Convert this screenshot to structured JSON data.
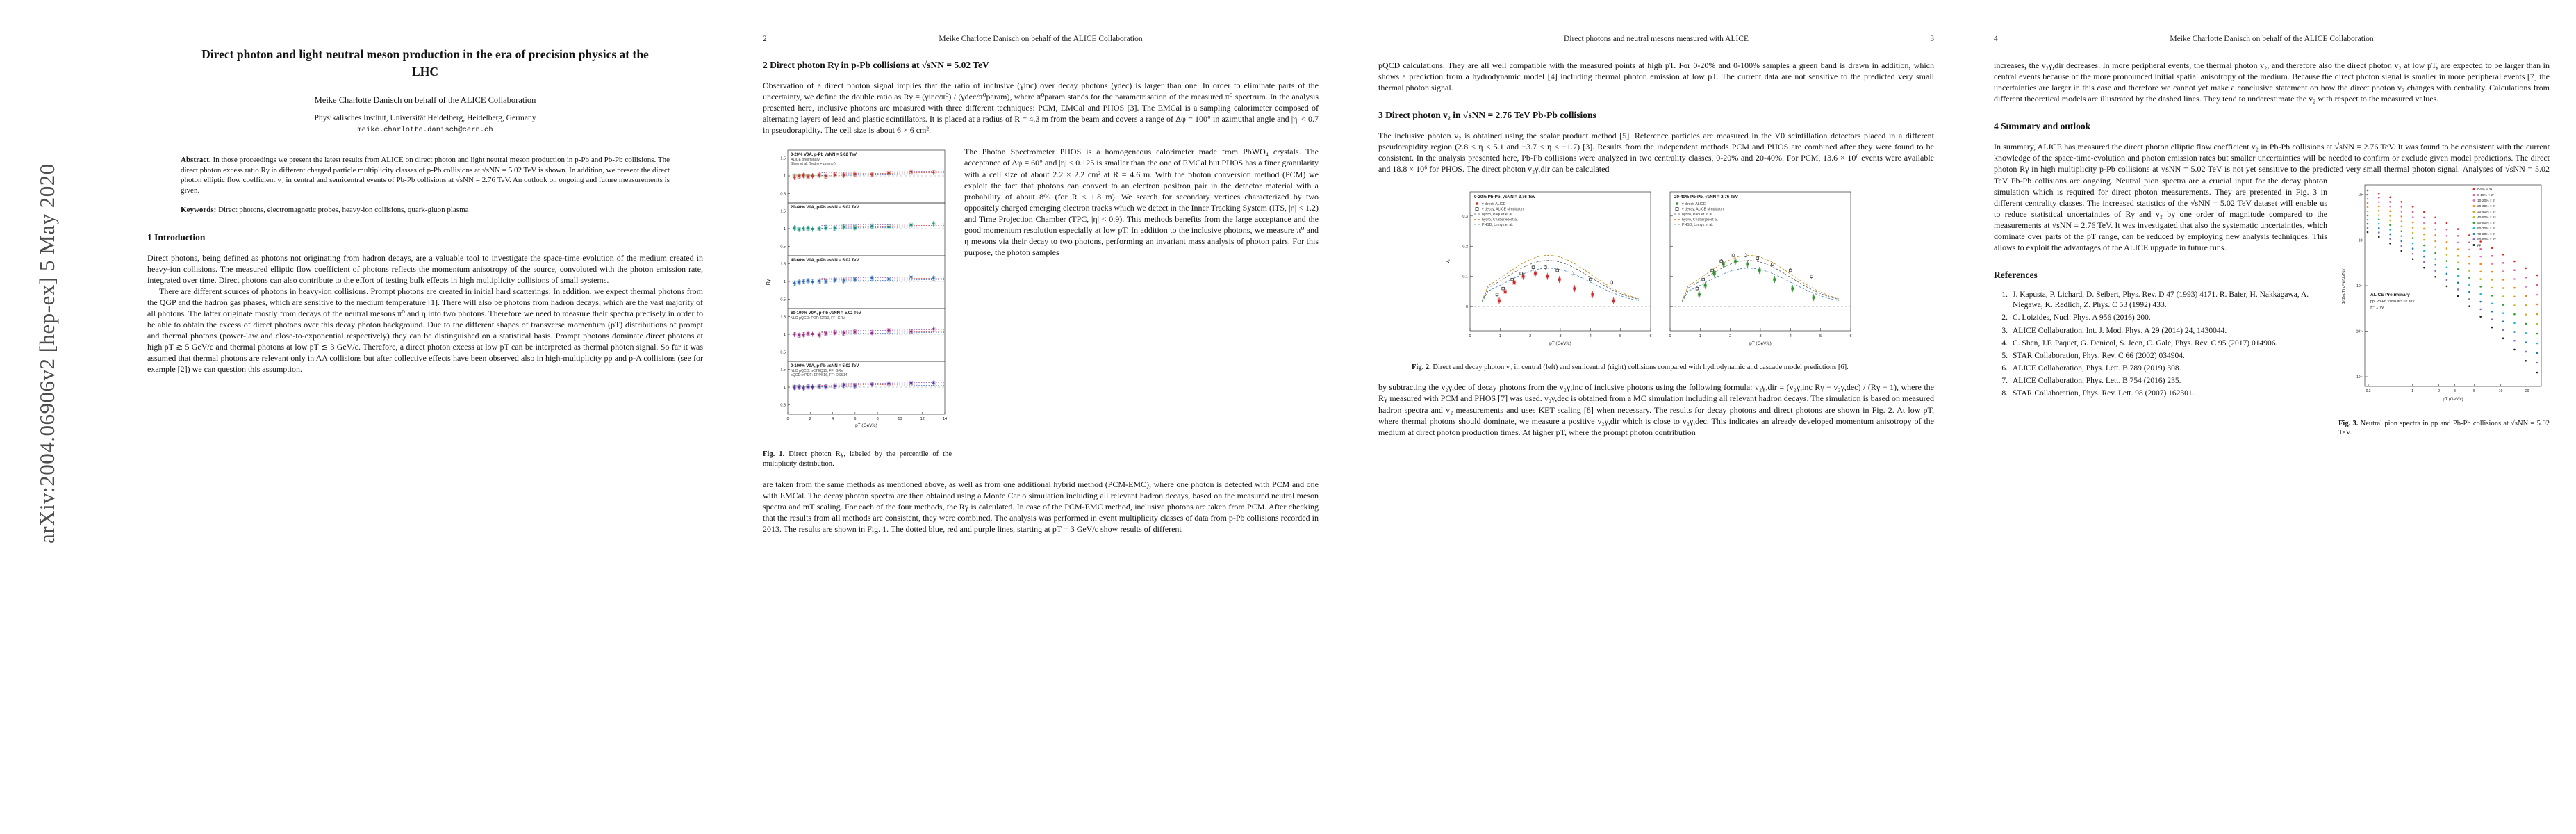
{
  "arxiv": {
    "watermark": "arXiv:2004.06906v2  [hep-ex]  5 May 2020"
  },
  "page1": {
    "title": "Direct photon and light neutral meson production in the era of precision physics at the LHC",
    "author": "Meike Charlotte Danisch on behalf of the ALICE Collaboration",
    "affiliation": "Physikalisches Institut, Universität Heidelberg, Heidelberg, Germany",
    "email": "meike.charlotte.danisch@cern.ch",
    "abstract_label": "Abstract.",
    "abstract_text": "In those proceedings we present the latest results from ALICE on direct photon and light neutral meson production in p-Pb and Pb-Pb collisions. The direct photon excess ratio Rγ in different charged particle multiplicity classes of p-Pb collisions at √sNN = 5.02 TeV is shown. In addition, we present the direct photon elliptic flow coefficient v₂ in central and semicentral events of Pb-Pb collisions at √sNN = 2.76 TeV. An outlook on ongoing and future measurements is given.",
    "keywords_label": "Keywords:",
    "keywords_text": "Direct photons, electromagnetic probes, heavy-ion collisions, quark-gluon plasma",
    "section_heading": "1   Introduction",
    "para1": "Direct photons, being defined as photons not originating from hadron decays, are a valuable tool to investigate the space-time evolution of the medium created in heavy-ion collisions. The measured elliptic flow coefficient of photons reflects the momentum anisotropy of the source, convoluted with the photon emission rate, integrated over time. Direct photons can also contribute to the effort of testing bulk effects in high multiplicity collisions of small systems.",
    "para2": "There are different sources of photons in heavy-ion collisions. Prompt photons are created in initial hard scatterings. In addition, we expect thermal photons from the QGP and the hadron gas phases, which are sensitive to the medium temperature [1]. There will also be photons from hadron decays, which are the vast majority of all photons. The latter originate mostly from decays of the neutral mesons π⁰ and η into two photons. Therefore we need to measure their spectra precisely in order to be able to obtain the excess of direct photons over this decay photon background. Due to the different shapes of transverse momentum (pT) distributions of prompt and thermal photons (power-law and close-to-exponential respectively) they can be distinguished on a statistical basis. Prompt photons dominate direct photons at high pT ≳ 5 GeV/c and thermal photons at low pT ≲ 3 GeV/c. Therefore, a direct photon excess at low pT can be interpreted as thermal photon signal. So far it was assumed that thermal photons are relevant only in AA collisions but after collective effects have been observed also in high-multiplicity pp and p-A collisions (see for example [2]) we can question this assumption."
  },
  "page2": {
    "header_num": "2",
    "header_title": "Meike Charlotte Danisch on behalf of the ALICE Collaboration",
    "section_heading": "2   Direct photon Rγ in p-Pb collisions at √sNN = 5.02 TeV",
    "para1": "Observation of a direct photon signal implies that the ratio of inclusive (γinc) over decay photons (γdec) is larger than one. In order to eliminate parts of the uncertainty, we define the double ratio as Rγ = (γinc/π⁰) / (γdec/π⁰param), where π⁰param stands for the parametrisation of the measured π⁰ spectrum. In the analysis presented here, inclusive photons are measured with three different techniques: PCM, EMCal and PHOS [3]. The EMCal is a sampling calorimeter composed of alternating layers of lead and plastic scintillators. It is placed at a radius of R = 4.3 m from the beam and covers a range of Δφ = 100° in azimuthal angle and |η| < 0.7 in pseudorapidity. The cell size is about 6 × 6 cm².",
    "para_beside_fig": "The Photon Spectrometer PHOS is a homogeneous calorimeter made from PbWO₄ crystals. The acceptance of Δφ = 60° and |η| < 0.125 is smaller than the one of EMCal but PHOS has a finer granularity with a cell size of about 2.2 × 2.2 cm² at R = 4.6 m. With the photon conversion method (PCM) we exploit the fact that photons can convert to an electron positron pair in the detector material with a probability of about 8% (for R < 1.8 m). We search for secondary vertices characterized by two oppositely charged emerging electron tracks which we detect in the Inner Tracking System (ITS, |η| < 1.2) and Time Projection Chamber (TPC, |η| < 0.9). This methods benefits from the large acceptance and the good momentum resolution especially at low pT. In addition to the inclusive photons, we measure π⁰ and η mesons via their decay to two photons, performing an invariant mass analysis of photon pairs. For this purpose, the photon samples",
    "fig1_caption_label": "Fig. 1.",
    "fig1_caption_text": "Direct photon Rγ, labeled by the percentile of the multiplicity distribution.",
    "para2": "are taken from the same methods as mentioned above, as well as from one additional hybrid method (PCM-EMC), where one photon is detected with PCM and one with EMCal. The decay photon spectra are then obtained using a Monte Carlo simulation including all relevant hadron decays, based on the measured neutral meson spectra and mT scaling. For each of the four methods, the Rγ is calculated. In case of the PCM-EMC method, inclusive photons are taken from PCM. After checking that the results from all methods are consistent, they were combined. The analysis was performed in event multiplicity classes of data from p-Pb collisions recorded in 2013. The results are shown in Fig. 1. The dotted blue, red and purple lines, starting at pT = 3 GeV/c show results of different"
  },
  "page3": {
    "header_num": "3",
    "header_title": "Direct photons and neutral mesons measured with ALICE",
    "para0": "pQCD calculations. They are all well compatible with the measured points at high pT. For 0-20% and 0-100% samples a green band is drawn in addition, which shows a prediction from a hydrodynamic model [4] including thermal photon emission at low pT. The current data are not sensitive to the predicted very small thermal photon signal.",
    "section_heading": "3   Direct photon v₂ in √sNN = 2.76 TeV Pb-Pb collisions",
    "para1": "The inclusive photon v₂ is obtained using the scalar product method [5]. Reference particles are measured in the V0 scintillation detectors placed in a different pseudorapidity region (2.8 < η < 5.1 and −3.7 < η < −1.7) [3]. Results from the independent methods PCM and PHOS are combined after they were found to be consistent. In the analysis presented here, Pb-Pb collisions were analyzed in two centrality classes, 0-20% and 20-40%. For PCM, 13.6 × 10⁶ events were available and 18.8 × 10⁶ for PHOS. The direct photon v₂γ,dir can be calculated",
    "fig2_caption_label": "Fig. 2.",
    "fig2_caption_text": "Direct and decay photon v₂ in central (left) and semicentral (right) collisions compared with hydrodynamic and cascade model predictions [6].",
    "para2": "by subtracting the v₂γ,dec of decay photons from the v₂γ,inc of inclusive photons using the following formula: v₂γ,dir = (v₂γ,inc Rγ − v₂γ,dec) / (Rγ − 1), where the Rγ measured with PCM and PHOS [7] was used. v₂γ,dec is obtained from a MC simulation including all relevant hadron decays. The simulation is based on measured hadron spectra and v₂ measurements and uses KET scaling [8] when necessary. The results for decay photons and direct photons are shown in Fig. 2. At low pT, where thermal photons should dominate, we measure a positive v₂γ,dir which is close to v₂γ,dec. This indicates an already developed momentum anisotropy of the medium at direct photon production times. At higher pT, where the prompt photon contribution"
  },
  "page4": {
    "header_num": "4",
    "header_title": "Meike Charlotte Danisch on behalf of the ALICE Collaboration",
    "para0": "increases, the v₂γ,dir decreases. In more peripheral events, the thermal photon v₂, and therefore also the direct photon v₂ at low pT, are expected to be larger than in central events because of the more pronounced initial spatial anisotropy of the medium. Because the direct photon signal is smaller in more peripheral events [7] the uncertainties are larger in this case and therefore we cannot yet make a conclusive statement on how the direct photon v₂ changes with centrality. Calculations from different theoretical models are illustrated by the dashed lines. They tend to underestimate the v₂ with respect to the measured values.",
    "section_heading": "4   Summary and outlook",
    "summary_a": "In summary, ALICE has measured the direct photon elliptic flow coefficient v₂ in Pb-Pb collisions at √sNN = 2.76 TeV. It was found to be consistent with the current knowledge of the space-time-evolution and photon emission rates but smaller uncertainties will be needed to confirm or exclude given model predictions. The direct photon Rγ in high multiplicity p-Pb collisions at √sNN = 5.02 TeV is not yet sensitive to the predicted very small thermal photon signal.",
    "summary_b": "Analyses of √sNN = 5.02 TeV Pb-Pb collisions are ongoing. Neutral pion spectra are a crucial input for the decay photon simulation which is required for direct photon measurements. They are presented in Fig. 3 in different centrality classes. The increased statistics of the √sNN = 5.02 TeV dataset will enable us to reduce statistical uncertainties of Rγ and v₂ by one order of magnitude compared to the measurements at √sNN = 2.76 TeV. It was investigated that also the systematic uncertainties, which dominate over parts of the pT range, can be reduced by employing new analysis techniques. This allows to exploit the advantages of the ALICE upgrade in future runs.",
    "references_heading": "References",
    "references": [
      {
        "num": "1",
        "text": "J. Kapusta, P. Lichard, D. Seibert, Phys. Rev. D 47 (1993) 4171.  R. Baier, H. Nakkagawa, A. Niegawa, K. Redlich, Z. Phys. C 53 (1992) 433."
      },
      {
        "num": "2",
        "text": "C. Loizides, Nucl. Phys. A 956 (2016) 200."
      },
      {
        "num": "3",
        "text": "ALICE Collaboration, Int. J. Mod. Phys. A 29 (2014) 24, 1430044."
      },
      {
        "num": "4",
        "text": "C. Shen, J.F. Paquet, G. Denicol, S. Jeon, C. Gale, Phys. Rev. C 95 (2017) 014906."
      },
      {
        "num": "5",
        "text": "STAR Collaboration, Phys. Rev. C 66 (2002) 034904."
      },
      {
        "num": "6",
        "text": "ALICE Collaboration, Phys. Lett. B 789 (2019) 308."
      },
      {
        "num": "7",
        "text": "ALICE Collaboration, Phys. Lett. B 754 (2016) 235."
      },
      {
        "num": "8",
        "text": "STAR Collaboration, Phys. Rev. Lett. 98 (2007) 162301."
      }
    ],
    "fig3_caption_label": "Fig. 3.",
    "fig3_caption_text": "Neutral pion spectra in pp and Pb-Pb collisions at √sNN = 5.02 TeV."
  },
  "fig1": {
    "ylabel": "Rγ",
    "xlabel": "pT (GeV/c)",
    "x": [
      0.6,
      1.0,
      1.4,
      1.8,
      2.2,
      2.8,
      3.4,
      4.2,
      5.0,
      6.0,
      7.5,
      9.0,
      11.0,
      13.0
    ],
    "yticks": [
      0.5,
      1,
      1.5
    ],
    "xticks": [
      0,
      2,
      4,
      6,
      8,
      10,
      12,
      14
    ],
    "panels": [
      {
        "label": "0-20% V0A, p-Pb √sNN = 5.02 TeV",
        "note": "ALICE preliminary",
        "note2": "Shen et al. (hydro + prompt)",
        "color": "#c0392b",
        "band": true,
        "r": [
          0.96,
          0.99,
          1.01,
          0.98,
          1.0,
          1.02,
          0.99,
          1.03,
          1.02,
          1.05,
          1.04,
          1.08,
          1.12,
          1.1
        ]
      },
      {
        "label": "20-40% V0A, p-Pb √sNN = 5.02 TeV",
        "note": "",
        "note2": "",
        "color": "#16927f",
        "band": false,
        "r": [
          1.02,
          0.98,
          1.0,
          1.01,
          0.99,
          1.0,
          1.03,
          1.01,
          1.05,
          1.03,
          1.07,
          1.05,
          1.1,
          1.14
        ]
      },
      {
        "label": "40-60% V0A, p-Pb √sNN = 5.02 TeV",
        "note": "",
        "note2": "",
        "color": "#2b6cb0",
        "band": false,
        "r": [
          0.95,
          0.98,
          1.0,
          1.02,
          0.99,
          1.01,
          1.0,
          1.04,
          1.02,
          1.06,
          1.09,
          1.07,
          1.13,
          1.09
        ]
      },
      {
        "label": "60-100% V0A, p-Pb √sNN = 5.02 TeV",
        "note": "NLO pQCD: PDF: CT10, FF: GRV",
        "note2": "",
        "color": "#9b2f86",
        "band": false,
        "r": [
          1.0,
          0.97,
          0.99,
          1.02,
          1.01,
          0.98,
          1.02,
          1.05,
          1.03,
          1.07,
          1.05,
          1.11,
          1.08,
          1.15
        ]
      },
      {
        "label": "0-100% V0A, p-Pb √sNN = 5.02 TeV",
        "note": "NLO pQCD: nCTEQ15, FF: GRV",
        "note2": "pQCD: nPDF: EPPS16, FF: DSS14",
        "color": "#5e35a0",
        "band": true,
        "r": [
          0.99,
          1.0,
          0.98,
          1.01,
          1.0,
          1.02,
          1.01,
          1.03,
          1.05,
          1.04,
          1.08,
          1.1,
          1.12,
          1.11
        ]
      }
    ]
  },
  "fig2": {
    "ylabel": "v₂",
    "xlabel": "pT (GeV/c)",
    "yticks": [
      0,
      0.1,
      0.2,
      0.3
    ],
    "xticks": [
      0,
      1,
      2,
      3,
      4,
      5,
      6
    ],
    "legend": [
      "γ direct, ALICE",
      "γ decay, ALICE simulation",
      "hydro, Paquet et al.",
      "hydro, Chatterjee et al.",
      "PHSD, Linnyk et al."
    ],
    "panels": [
      {
        "label": "0-20% Pb-Pb, √sNN = 2.76 TeV",
        "color": "#cc2a2a",
        "x": [
          0.9,
          1.1,
          1.4,
          1.7,
          2.1,
          2.5,
          2.9,
          3.4,
          4.0,
          4.7
        ],
        "dir": [
          0.02,
          0.05,
          0.08,
          0.1,
          0.11,
          0.1,
          0.09,
          0.06,
          0.04,
          0.02
        ],
        "dec": [
          0.04,
          0.06,
          0.09,
          0.11,
          0.13,
          0.13,
          0.12,
          0.11,
          0.09,
          0.08
        ]
      },
      {
        "label": "20-40% Pb-Pb, √sNN = 2.76 TeV",
        "color": "#2f8f2f",
        "x": [
          0.9,
          1.1,
          1.4,
          1.7,
          2.1,
          2.5,
          2.9,
          3.4,
          4.0,
          4.7
        ],
        "dir": [
          0.04,
          0.07,
          0.11,
          0.14,
          0.15,
          0.14,
          0.12,
          0.09,
          0.06,
          0.03
        ],
        "dec": [
          0.06,
          0.09,
          0.12,
          0.15,
          0.17,
          0.17,
          0.16,
          0.14,
          0.12,
          0.1
        ]
      }
    ]
  },
  "fig3": {
    "title": "ALICE Preliminary",
    "subtitle1": "pp, Pb-Pb √sNN = 5.02 TeV",
    "subtitle2": "π⁰ → γγ",
    "ylabel": "1/(2πpT) d²N/(dpTdy)",
    "xlabel": "pT (GeV/c)",
    "yticks": [
      "10⁵",
      "10²",
      "10⁻¹",
      "10⁻⁴",
      "10⁻⁷"
    ],
    "xticks": [
      {
        "label": "0.3",
        "f": 0.02
      },
      {
        "label": "1",
        "f": 0.27
      },
      {
        "label": "2",
        "f": 0.42
      },
      {
        "label": "3",
        "f": 0.51
      },
      {
        "label": "5",
        "f": 0.62
      },
      {
        "label": "10",
        "f": 0.77
      },
      {
        "label": "20",
        "f": 0.92
      }
    ],
    "series": [
      {
        "label": "0-5% × 2⁹",
        "color": "#d62728"
      },
      {
        "label": "5-10% × 2⁸",
        "color": "#e0558a"
      },
      {
        "label": "10-20% × 2⁷",
        "color": "#e377c2"
      },
      {
        "label": "20-30% × 2⁶",
        "color": "#ff7f0e"
      },
      {
        "label": "30-40% × 2⁵",
        "color": "#d4a017"
      },
      {
        "label": "40-50% × 2⁴",
        "color": "#bcbd22"
      },
      {
        "label": "50-60% × 2³",
        "color": "#2ca02c"
      },
      {
        "label": "60-70% × 2²",
        "color": "#17becf"
      },
      {
        "label": "70-80% × 2¹",
        "color": "#1f77b4"
      },
      {
        "label": "80-90% × 2⁰",
        "color": "#9467bd"
      },
      {
        "label": "pp",
        "color": "#222222"
      }
    ]
  }
}
